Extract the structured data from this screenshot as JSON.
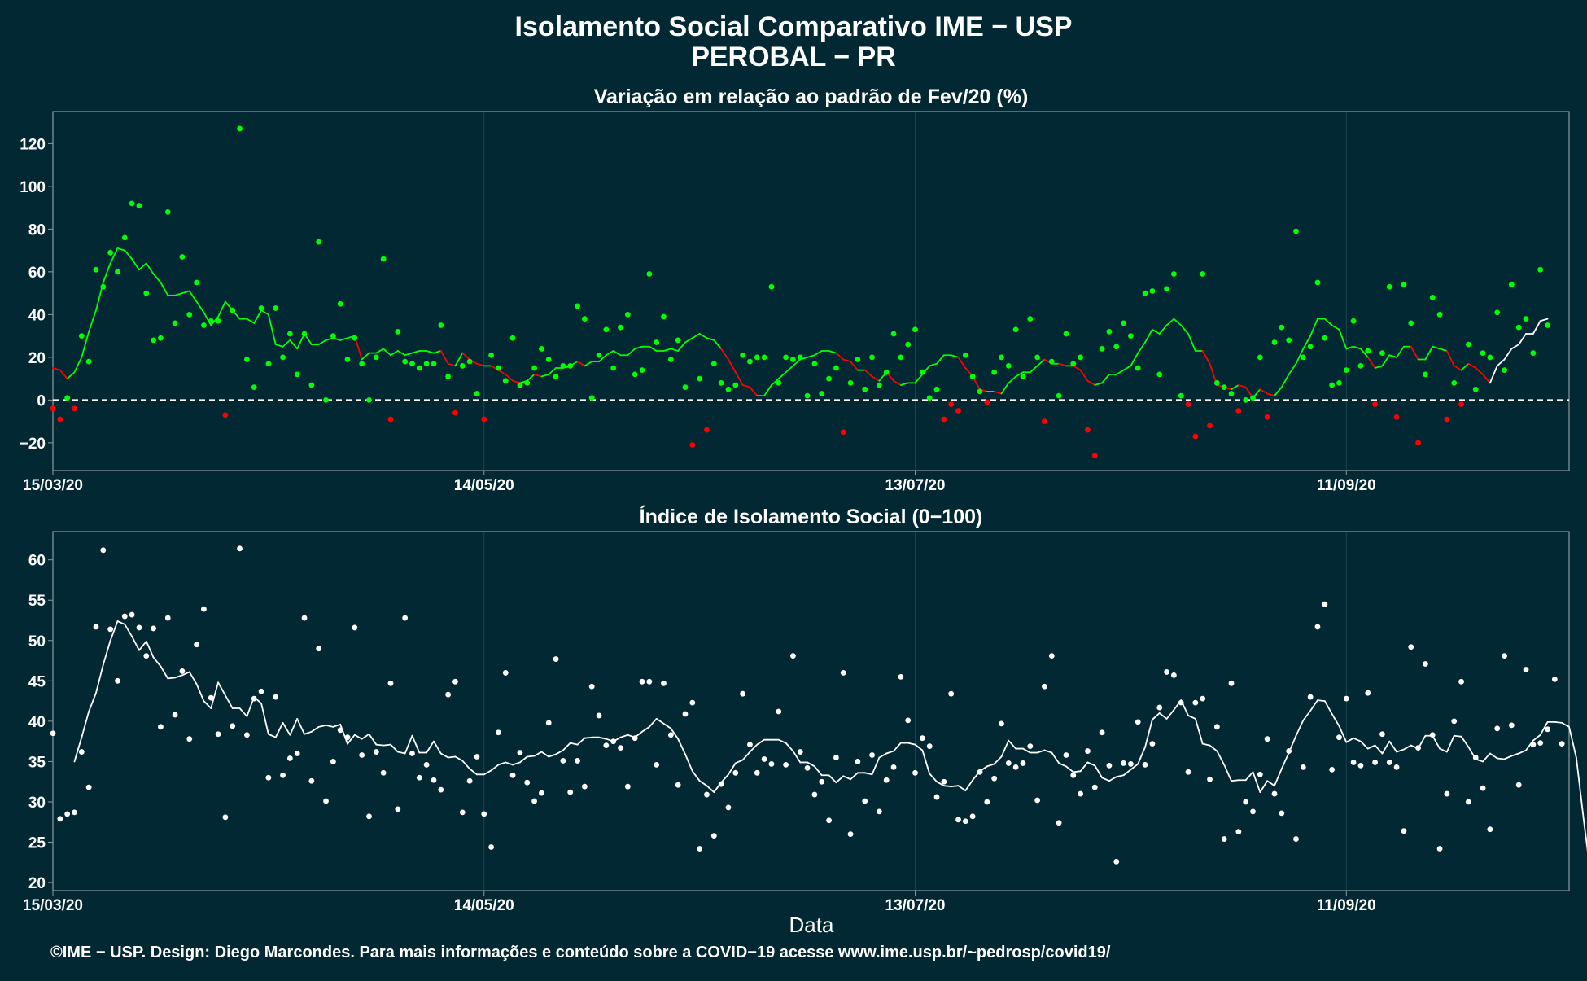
{
  "header": {
    "title_line1": "Isolamento Social Comparativo IME − USP",
    "title_line2": "PEROBAL − PR"
  },
  "footer": {
    "xlabel": "Data",
    "credit": "©IME − USP. Design: Diego Marcondes. Para mais informações e conteúdo sobre a COVID−19 acesse www.ime.usp.br/~pedrosp/covid19/"
  },
  "colors": {
    "background": "#022834",
    "panel_border": "#8a9aa0",
    "grid": "#1c4450",
    "positive": "#00ff00",
    "negative": "#ff0000",
    "index": "#ffffff"
  },
  "chart_data": [
    {
      "type": "scatter",
      "title": "Variação em relação ao padrão de Fev/20 (%)",
      "x_start": "15/03/20",
      "x_ticks": [
        "15/03/20",
        "14/05/20",
        "13/07/20",
        "11/09/20"
      ],
      "x_tick_days": [
        0,
        60,
        120,
        180
      ],
      "xlim_days": [
        0,
        211
      ],
      "y_ticks": [
        "120",
        "100",
        "80",
        "60",
        "40",
        "20",
        "0",
        "−20"
      ],
      "y_tick_values": [
        120,
        100,
        80,
        60,
        40,
        20,
        0,
        -20
      ],
      "ylim": [
        -33,
        135
      ],
      "reference_line": 0,
      "grid": true,
      "series": [
        {
          "kind": "points",
          "values": [
            -4,
            -9,
            1,
            -4,
            30,
            18,
            61,
            53,
            69,
            60,
            76,
            92,
            91,
            50,
            28,
            29,
            88,
            36,
            67,
            40,
            55,
            35,
            37,
            37,
            -7,
            42,
            127,
            19,
            6,
            43,
            17,
            43,
            20,
            31,
            12,
            31,
            7,
            74,
            0,
            30,
            45,
            19,
            29,
            17,
            0,
            20,
            66,
            -9,
            32,
            18,
            17,
            15,
            17,
            17,
            35,
            11,
            -6,
            16,
            18,
            3,
            -9,
            21,
            15,
            9,
            29,
            7,
            8,
            15,
            24,
            19,
            11,
            16,
            16,
            44,
            38,
            1,
            21,
            33,
            15,
            34,
            40,
            12,
            14,
            59,
            27,
            39,
            19,
            28,
            6,
            -21,
            10,
            -14,
            17,
            8,
            5,
            7,
            21,
            18,
            20,
            20,
            53,
            8,
            20,
            19,
            20,
            2,
            17,
            3,
            10,
            15,
            -15,
            8,
            19,
            5,
            20,
            7,
            13,
            31,
            20,
            26,
            33,
            13,
            1,
            5,
            -9,
            -2,
            -5,
            21,
            11,
            4,
            -1,
            13,
            20,
            16,
            33,
            11,
            38,
            20,
            -10,
            18,
            2,
            31,
            17,
            20,
            -14,
            -26,
            24,
            32,
            25,
            36,
            30,
            15,
            50,
            51,
            12,
            52,
            59,
            2,
            -2,
            -17,
            59,
            -12,
            8,
            6,
            3,
            -5,
            0,
            1,
            20,
            -8,
            27,
            34,
            28,
            79,
            20,
            25,
            55,
            29,
            7,
            8,
            14,
            37,
            16,
            23,
            -2,
            22,
            53,
            -8,
            54,
            36,
            -20,
            12,
            48,
            40,
            -9,
            8,
            -2,
            26,
            5,
            22,
            20,
            41,
            14,
            54,
            34,
            38,
            22,
            61,
            35
          ]
        },
        {
          "kind": "moving-average",
          "values": [
            15,
            14,
            10,
            13,
            20,
            32,
            42,
            55,
            64,
            71,
            70,
            66,
            61,
            64,
            59,
            55,
            49,
            49,
            50,
            51,
            46,
            41,
            35,
            39,
            46,
            42,
            38,
            38,
            36,
            42,
            40,
            26,
            25,
            28,
            24,
            31,
            26,
            26,
            28,
            29,
            28,
            29,
            30,
            19,
            22,
            22,
            24,
            21,
            23,
            21,
            22,
            23,
            23,
            22,
            23,
            17,
            16,
            22,
            19,
            17,
            16,
            16,
            14,
            12,
            9,
            8,
            9,
            12,
            11,
            12,
            15,
            15,
            16,
            18,
            16,
            18,
            18,
            21,
            23,
            21,
            21,
            24,
            25,
            25,
            23,
            23,
            24,
            23,
            27,
            29,
            31,
            29,
            28,
            24,
            19,
            13,
            7,
            6,
            2,
            2,
            7,
            10,
            13,
            16,
            19,
            20,
            21,
            23,
            23,
            22,
            19,
            18,
            14,
            14,
            11,
            9,
            13,
            9,
            7,
            8,
            8,
            12,
            16,
            17,
            21,
            21,
            20,
            15,
            11,
            5,
            4,
            4,
            3,
            8,
            11,
            13,
            13,
            16,
            19,
            17,
            17,
            16,
            16,
            14,
            9,
            7,
            8,
            12,
            12,
            14,
            16,
            22,
            27,
            33,
            31,
            35,
            38,
            35,
            31,
            23,
            23,
            17,
            7,
            6,
            5,
            7,
            6,
            1,
            5,
            3,
            2,
            6,
            12,
            17,
            24,
            30,
            38,
            38,
            35,
            33,
            24,
            25,
            24,
            20,
            15,
            16,
            21,
            20,
            25,
            25,
            19,
            19,
            25,
            24,
            23,
            16,
            14,
            17,
            15,
            12,
            8,
            16,
            19,
            24,
            26,
            31,
            31,
            37,
            38
          ]
        }
      ]
    },
    {
      "type": "scatter",
      "title": "Índice de Isolamento Social (0−100)",
      "x_start": "15/03/20",
      "x_ticks": [
        "15/03/20",
        "14/05/20",
        "13/07/20",
        "11/09/20"
      ],
      "x_tick_days": [
        0,
        60,
        120,
        180
      ],
      "xlim_days": [
        0,
        211
      ],
      "y_ticks": [
        "60",
        "55",
        "50",
        "45",
        "40",
        "35",
        "30",
        "25",
        "20"
      ],
      "y_tick_values": [
        60,
        55,
        50,
        45,
        40,
        35,
        30,
        25,
        20
      ],
      "ylim": [
        19,
        63.5
      ],
      "grid": true,
      "series": [
        {
          "kind": "points",
          "values": [
            38.5,
            27.9,
            28.5,
            28.7,
            36.2,
            31.8,
            51.7,
            61.2,
            51.4,
            45.0,
            53.0,
            53.2,
            51.6,
            48.1,
            51.5,
            39.3,
            52.8,
            40.8,
            46.2,
            37.8,
            49.5,
            53.9,
            42.9,
            38.4,
            28.1,
            39.4,
            61.4,
            38.3,
            42.8,
            43.7,
            33.0,
            43.0,
            33.3,
            35.4,
            36.0,
            52.8,
            32.6,
            49.0,
            30.1,
            35.0,
            38.9,
            38.0,
            51.6,
            35.8,
            28.2,
            36.2,
            33.6,
            44.7,
            29.1,
            52.8,
            36.0,
            33.0,
            34.6,
            32.7,
            31.5,
            43.3,
            44.9,
            28.7,
            32.6,
            35.6,
            28.5,
            24.4,
            38.6,
            46.0,
            33.3,
            36.1,
            32.4,
            30.1,
            31.1,
            39.8,
            47.7,
            35.1,
            31.2,
            35.1,
            31.9,
            44.3,
            40.7,
            37.0,
            37.5,
            36.7,
            31.9,
            37.9,
            44.9,
            44.9,
            34.6,
            44.7,
            38.3,
            32.1,
            40.9,
            42.3,
            24.2,
            30.9,
            25.8,
            32.2,
            29.3,
            33.6,
            43.4,
            37.1,
            33.6,
            35.3,
            34.7,
            41.2,
            34.6,
            48.1,
            36.2,
            34.2,
            30.9,
            32.5,
            27.7,
            35.5,
            46.0,
            26.0,
            35.0,
            30.1,
            35.8,
            28.8,
            32.7,
            34.3,
            45.5,
            40.1,
            33.6,
            37.9,
            36.9,
            30.6,
            32.5,
            43.4,
            27.8,
            27.6,
            28.2,
            33.7,
            30.0,
            32.9,
            39.7,
            34.8,
            34.3,
            34.8,
            36.9,
            30.2,
            44.3,
            48.1,
            27.4,
            35.8,
            33.3,
            31.0,
            36.3,
            31.8,
            38.6,
            34.5,
            22.6,
            34.8,
            34.7,
            39.9,
            34.6,
            37.2,
            41.7,
            46.1,
            45.7,
            42.3,
            33.7,
            42.3,
            42.8,
            32.8,
            39.3,
            25.4,
            44.7,
            26.3,
            30.0,
            28.8,
            33.4,
            37.8,
            31.0,
            28.6,
            36.3,
            25.4,
            34.3,
            43.0,
            51.7,
            54.5,
            34.0,
            38.0,
            42.8,
            34.9,
            34.5,
            43.5,
            34.9,
            38.4,
            34.9,
            34.3,
            26.4,
            49.2,
            36.7,
            47.1,
            38.3,
            24.2,
            31.0,
            40.0,
            44.9,
            30.0,
            35.5,
            31.7,
            26.6,
            39.1,
            48.1,
            39.5,
            32.1,
            46.4,
            37.1,
            37.3,
            39.0,
            45.2,
            37.2
          ]
        },
        {
          "kind": "moving-average",
          "values": [
            null,
            null,
            null,
            35.0,
            38.0,
            41.2,
            43.5,
            47.0,
            50.0,
            52.4,
            52.0,
            50.5,
            48.8,
            49.9,
            47.9,
            46.8,
            45.3,
            45.4,
            45.7,
            46.1,
            44.6,
            42.5,
            41.6,
            44.8,
            43.2,
            41.6,
            41.6,
            40.6,
            43.0,
            42.2,
            38.4,
            38.0,
            39.8,
            38.3,
            40.3,
            38.4,
            38.7,
            39.3,
            39.5,
            39.3,
            39.6,
            37.2,
            38.3,
            37.8,
            38.4,
            37.1,
            37.0,
            37.1,
            36.2,
            36.0,
            38.2,
            36.1,
            36.1,
            37.5,
            36.0,
            35.5,
            35.6,
            35.1,
            34.1,
            33.4,
            33.4,
            33.9,
            34.6,
            34.9,
            34.6,
            34.9,
            35.6,
            35.7,
            36.2,
            35.6,
            35.9,
            36.4,
            37.3,
            37.1,
            37.9,
            38.0,
            38.0,
            37.8,
            37.5,
            38.0,
            38.3,
            38.0,
            38.7,
            39.3,
            40.3,
            39.7,
            39.1,
            37.8,
            35.9,
            33.8,
            32.6,
            32.0,
            31.2,
            32.4,
            33.4,
            34.8,
            35.2,
            36.2,
            37.1,
            37.7,
            37.7,
            37.7,
            37.3,
            36.3,
            34.9,
            34.9,
            34.4,
            33.3,
            33.3,
            32.4,
            33.2,
            32.8,
            33.6,
            33.6,
            33.4,
            35.5,
            36.0,
            36.3,
            37.3,
            37.3,
            37.1,
            36.4,
            33.5,
            32.5,
            32.0,
            31.9,
            32.0,
            31.4,
            32.7,
            33.8,
            34.4,
            34.7,
            35.6,
            37.6,
            36.6,
            36.6,
            36.1,
            36.1,
            36.4,
            36.1,
            34.8,
            34.4,
            33.7,
            33.8,
            34.9,
            34.5,
            33.0,
            32.6,
            33.1,
            33.3,
            34.0,
            34.7,
            36.8,
            40.2,
            41.0,
            40.3,
            41.4,
            42.6,
            40.7,
            40.3,
            37.2,
            37.0,
            36.3,
            34.6,
            32.6,
            32.7,
            32.7,
            33.7,
            31.2,
            32.6,
            32.0,
            34.1,
            36.1,
            38.2,
            40.1,
            41.3,
            42.6,
            42.5,
            40.9,
            39.4,
            37.4,
            37.9,
            37.5,
            36.6,
            37.0,
            36.0,
            37.5,
            36.2,
            36.5,
            37.0,
            36.6,
            38.2,
            38.2,
            36.6,
            36.2,
            38.2,
            38.1,
            36.8,
            35.3,
            35.0,
            36.0,
            35.4,
            35.3,
            35.7,
            36.0,
            36.4,
            37.6,
            38.3,
            39.9,
            39.9,
            39.8,
            39.3,
            35.5,
            28.0,
            21.0
          ]
        }
      ]
    }
  ]
}
